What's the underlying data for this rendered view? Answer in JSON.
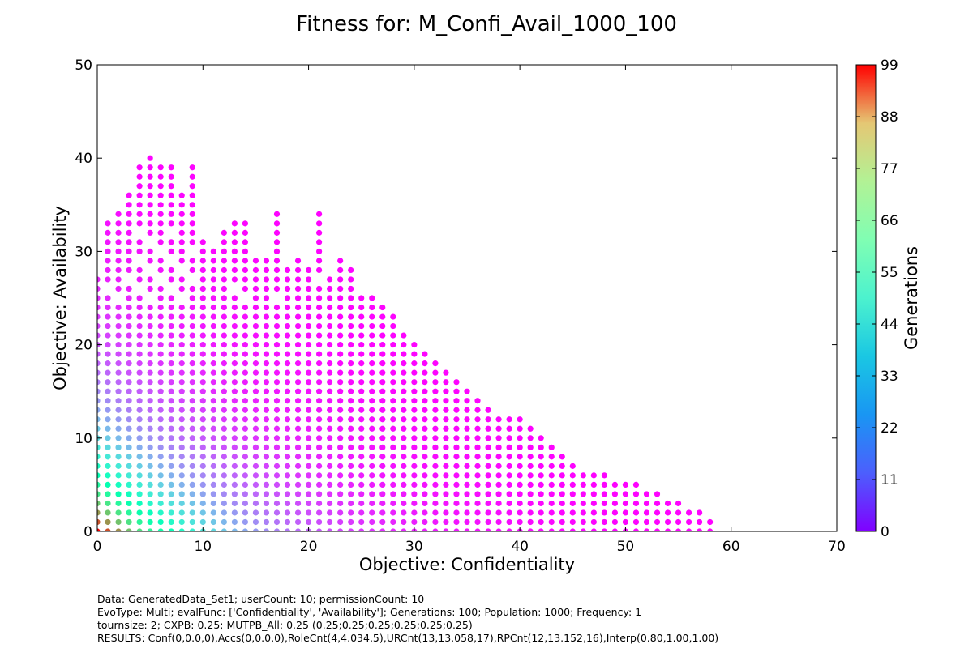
{
  "chart_data": {
    "type": "scatter",
    "title": "Fitness for: M_Confi_Avail_1000_100",
    "xlabel": "Objective: Confidentiality",
    "ylabel": "Objective: Availability",
    "xlim": [
      0,
      70
    ],
    "ylim": [
      0,
      50
    ],
    "xticks": [
      "0",
      "10",
      "20",
      "30",
      "40",
      "50",
      "60",
      "70"
    ],
    "yticks": [
      "0",
      "10",
      "20",
      "30",
      "40",
      "50"
    ],
    "grid": false,
    "colormap": "rainbow",
    "colorbar": {
      "label": "Generations",
      "range": [
        0,
        99
      ],
      "ticks": [
        "0",
        "11",
        "22",
        "33",
        "44",
        "55",
        "66",
        "77",
        "88",
        "99"
      ]
    },
    "frontier": [
      [
        0,
        27
      ],
      [
        1,
        33
      ],
      [
        2,
        34
      ],
      [
        3,
        36
      ],
      [
        4,
        39
      ],
      [
        5,
        40
      ],
      [
        6,
        39
      ],
      [
        7,
        39
      ],
      [
        8,
        36
      ],
      [
        9,
        39
      ],
      [
        10,
        31
      ],
      [
        11,
        30
      ],
      [
        12,
        32
      ],
      [
        13,
        33
      ],
      [
        14,
        33
      ],
      [
        15,
        29
      ],
      [
        16,
        29
      ],
      [
        17,
        34
      ],
      [
        18,
        28
      ],
      [
        19,
        29
      ],
      [
        20,
        28
      ],
      [
        21,
        34
      ],
      [
        22,
        27
      ],
      [
        23,
        29
      ],
      [
        24,
        28
      ],
      [
        25,
        25
      ],
      [
        26,
        25
      ],
      [
        27,
        24
      ],
      [
        28,
        23
      ],
      [
        29,
        21
      ],
      [
        30,
        20
      ],
      [
        31,
        19
      ],
      [
        32,
        18
      ],
      [
        33,
        17
      ],
      [
        34,
        16
      ],
      [
        35,
        15
      ],
      [
        36,
        14
      ],
      [
        37,
        13
      ],
      [
        38,
        12
      ],
      [
        39,
        12
      ],
      [
        40,
        12
      ],
      [
        41,
        11
      ],
      [
        42,
        10
      ],
      [
        43,
        9
      ],
      [
        44,
        8
      ],
      [
        45,
        7
      ],
      [
        46,
        6
      ],
      [
        47,
        6
      ],
      [
        48,
        6
      ],
      [
        49,
        5
      ],
      [
        50,
        5
      ],
      [
        51,
        5
      ],
      [
        52,
        4
      ],
      [
        53,
        4
      ],
      [
        54,
        3
      ],
      [
        55,
        3
      ],
      [
        56,
        2
      ],
      [
        57,
        2
      ],
      [
        58,
        1
      ]
    ]
  },
  "footer": {
    "line1": "Data: GeneratedData_Set1; userCount: 10; permissionCount: 10",
    "line2": "EvoType: Multi; evalFunc: ['Confidentiality', 'Availability']; Generations: 100; Population: 1000; Frequency: 1",
    "line3": "tournsize: 2; CXPB: 0.25; MUTPB_All: 0.25 (0.25;0.25;0.25;0.25;0.25;0.25)",
    "line4": "RESULTS: Conf(0,0.0,0),Accs(0,0.0,0),RoleCnt(4,4.034,5),URCnt(13,13.058,17),RPCnt(12,13.152,16),Interp(0.80,1.00,1.00)"
  }
}
